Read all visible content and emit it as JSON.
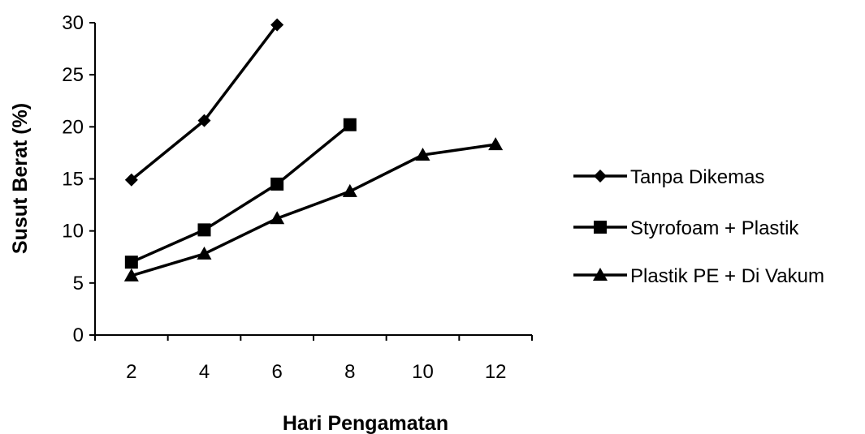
{
  "chart_data": {
    "type": "line",
    "title": "",
    "xlabel": "Hari Pengamatan",
    "ylabel": "Susut Berat (%)",
    "x_categories": [
      "2",
      "4",
      "6",
      "8",
      "10",
      "12"
    ],
    "ylim": [
      0,
      30
    ],
    "yticks": [
      "0",
      "5",
      "10",
      "15",
      "20",
      "25",
      "30"
    ],
    "grid": false,
    "legend_position": "right",
    "series": [
      {
        "name": "Tanpa Dikemas",
        "marker": "diamond",
        "color": "#000000",
        "x": [
          "2",
          "4",
          "6"
        ],
        "y": [
          14.9,
          20.6,
          29.8
        ]
      },
      {
        "name": "Styrofoam + Plastik",
        "marker": "square",
        "color": "#000000",
        "x": [
          "2",
          "4",
          "6",
          "8"
        ],
        "y": [
          7.0,
          10.1,
          14.5,
          20.2
        ]
      },
      {
        "name": "Plastik PE + Di Vakum",
        "marker": "triangle",
        "color": "#000000",
        "x": [
          "2",
          "4",
          "6",
          "8",
          "10",
          "12"
        ],
        "y": [
          5.7,
          7.8,
          11.2,
          13.8,
          17.3,
          18.3
        ]
      }
    ]
  }
}
